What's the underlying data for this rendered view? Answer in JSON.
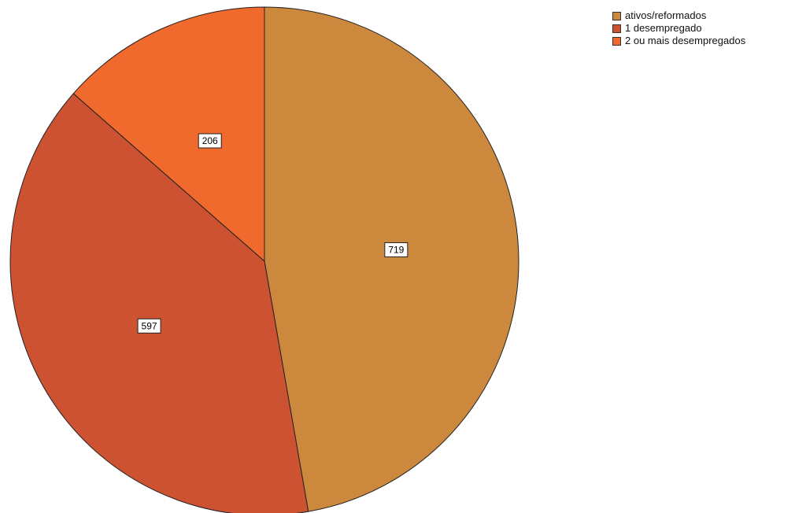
{
  "chart_data": {
    "type": "pie",
    "title": "",
    "categories": [
      "ativos/reformados",
      "1 desempregado",
      "2 ou mais desempregados"
    ],
    "values": [
      719,
      597,
      206
    ],
    "colors": [
      "#cc893e",
      "#cc5232",
      "#ef6a2c"
    ],
    "data_labels": [
      "719",
      "597",
      "206"
    ],
    "legend_position": "top-right",
    "start_angle_deg": 0,
    "direction": "clockwise"
  }
}
